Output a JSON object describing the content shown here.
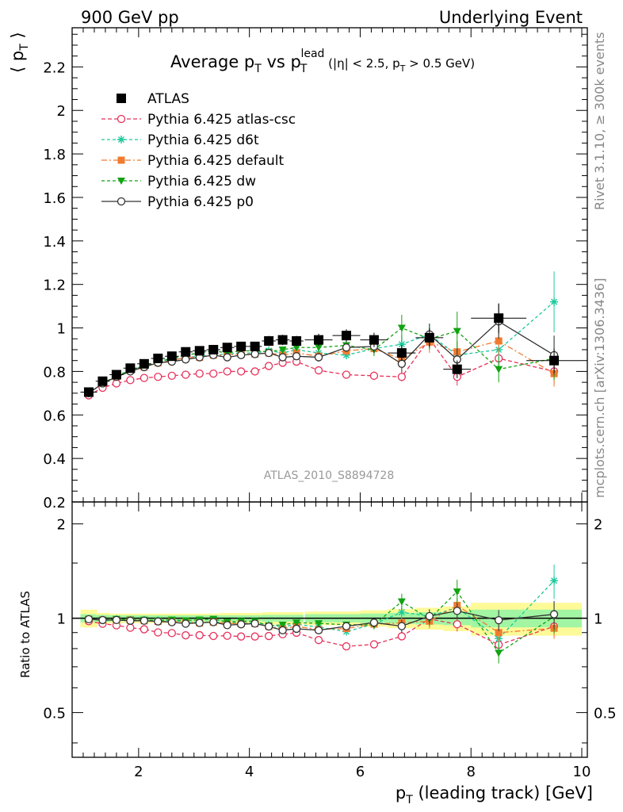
{
  "header": {
    "left": "900 GeV pp",
    "right": "Underlying Event"
  },
  "side": {
    "top": "Rivet 3.1.10, ≥ 300k events",
    "bottom": "mcplots.cern.ch [arXiv:1306.3436]"
  },
  "title": {
    "main": "Average p",
    "main_sub": "T",
    "vs": " vs p",
    "vs_sub": "T",
    "vs_sup": "lead",
    "cuts_1": " (|η| < 2.5, p",
    "cuts_sub": "T",
    "cuts_2": " > 0.5 GeV)"
  },
  "ylabel_main": {
    "left": "⟨ p",
    "sub": "T",
    "right": " ⟩"
  },
  "ylabel_ratio": "Ratio to ATLAS",
  "xlabel": {
    "p": "p",
    "sub": "T",
    "rest": " (leading track) [GeV]"
  },
  "watermark": "ATLAS_2010_S8894728",
  "colors": {
    "atlas": "#000000",
    "atlas_csc": "#e8305a",
    "d6t": "#1ac99b",
    "default": "#f07b30",
    "dw": "#12a212",
    "p0": "#333333",
    "band_outer": "#fdfa98",
    "band_inner": "#a2f5a2"
  },
  "chart_data": {
    "type": "scatter",
    "xlim": [
      0.8,
      10.1
    ],
    "main": {
      "ylim": [
        0.2,
        2.38
      ],
      "yticks": [
        0.2,
        0.4,
        0.6,
        0.8,
        1,
        1.2,
        1.4,
        1.6,
        1.8,
        2,
        2.2
      ],
      "ytick_labels": [
        "0.2",
        "0.4",
        "0.6",
        "0.8",
        "1",
        "1.2",
        "1.4",
        "1.6",
        "1.8",
        "2",
        "2.2"
      ]
    },
    "ratio": {
      "ylim": [
        0.36,
        2.35
      ],
      "scale": "log",
      "yticks": [
        0.5,
        1,
        2
      ],
      "ytick_labels": [
        "0.5",
        "1",
        "2"
      ]
    },
    "xticks": [
      2,
      4,
      6,
      8,
      10
    ],
    "xtick_labels": [
      "2",
      "4",
      "6",
      "8",
      "10"
    ],
    "x": [
      1.1,
      1.35,
      1.6,
      1.85,
      2.1,
      2.35,
      2.6,
      2.85,
      3.1,
      3.35,
      3.6,
      3.85,
      4.1,
      4.35,
      4.6,
      4.85,
      5.25,
      5.75,
      6.25,
      6.75,
      7.25,
      7.75,
      8.5,
      9.5
    ],
    "xerr": [
      0.15,
      0.125,
      0.125,
      0.125,
      0.125,
      0.125,
      0.125,
      0.125,
      0.125,
      0.125,
      0.125,
      0.125,
      0.125,
      0.125,
      0.125,
      0.125,
      0.25,
      0.25,
      0.25,
      0.25,
      0.25,
      0.25,
      0.5,
      0.5
    ],
    "data": {
      "name": "ATLAS",
      "y": [
        0.705,
        0.755,
        0.785,
        0.815,
        0.835,
        0.86,
        0.87,
        0.89,
        0.895,
        0.9,
        0.91,
        0.915,
        0.915,
        0.94,
        0.945,
        0.94,
        0.945,
        0.965,
        0.945,
        0.885,
        0.955,
        0.81,
        1.045,
        0.85
      ],
      "rel_err_outer": [
        0.065,
        0.04,
        0.035,
        0.035,
        0.035,
        0.035,
        0.035,
        0.035,
        0.035,
        0.035,
        0.04,
        0.04,
        0.04,
        0.045,
        0.045,
        0.045,
        0.05,
        0.05,
        0.06,
        0.07,
        0.08,
        0.09,
        0.12,
        0.12
      ],
      "rel_err_inner": [
        0.03,
        0.025,
        0.022,
        0.022,
        0.022,
        0.022,
        0.022,
        0.022,
        0.022,
        0.022,
        0.022,
        0.022,
        0.022,
        0.025,
        0.025,
        0.025,
        0.03,
        0.03,
        0.035,
        0.04,
        0.045,
        0.05,
        0.065,
        0.065
      ]
    },
    "series": [
      {
        "name": "Pythia 6.425 atlas-csc",
        "key": "atlas_csc",
        "marker": "circle-open",
        "dash": "5,3",
        "y": [
          0.69,
          0.725,
          0.745,
          0.76,
          0.77,
          0.775,
          0.78,
          0.785,
          0.79,
          0.79,
          0.8,
          0.8,
          0.8,
          0.825,
          0.84,
          0.845,
          0.805,
          0.785,
          0.78,
          0.775,
          0.95,
          0.775,
          0.86,
          0.8
        ],
        "err": [
          0.01,
          0.01,
          0.01,
          0.01,
          0.01,
          0.01,
          0.01,
          0.01,
          0.01,
          0.01,
          0.01,
          0.01,
          0.01,
          0.012,
          0.012,
          0.015,
          0.015,
          0.015,
          0.02,
          0.02,
          0.04,
          0.04,
          0.05,
          0.06
        ]
      },
      {
        "name": "Pythia 6.425 d6t",
        "key": "d6t",
        "marker": "star",
        "dash": "4,3",
        "y": [
          0.7,
          0.745,
          0.78,
          0.805,
          0.825,
          0.845,
          0.855,
          0.865,
          0.87,
          0.875,
          0.88,
          0.885,
          0.885,
          0.895,
          0.885,
          0.9,
          0.885,
          0.875,
          0.905,
          0.925,
          0.97,
          0.875,
          0.9,
          1.12
        ],
        "err": [
          0.01,
          0.01,
          0.01,
          0.01,
          0.01,
          0.01,
          0.01,
          0.01,
          0.01,
          0.01,
          0.01,
          0.01,
          0.012,
          0.012,
          0.015,
          0.015,
          0.02,
          0.02,
          0.03,
          0.04,
          0.05,
          0.06,
          0.08,
          0.14
        ]
      },
      {
        "name": "Pythia 6.425 default",
        "key": "default",
        "marker": "square-filled",
        "dash": "7,3,2,3",
        "y": [
          0.7,
          0.745,
          0.775,
          0.805,
          0.82,
          0.84,
          0.85,
          0.865,
          0.865,
          0.875,
          0.875,
          0.88,
          0.88,
          0.885,
          0.875,
          0.885,
          0.87,
          0.895,
          0.905,
          0.855,
          0.935,
          0.89,
          0.94,
          0.79
        ],
        "err": [
          0.01,
          0.01,
          0.01,
          0.01,
          0.01,
          0.01,
          0.01,
          0.01,
          0.01,
          0.01,
          0.01,
          0.01,
          0.012,
          0.012,
          0.015,
          0.015,
          0.02,
          0.02,
          0.03,
          0.04,
          0.05,
          0.05,
          0.06,
          0.06
        ]
      },
      {
        "name": "Pythia 6.425 dw",
        "key": "dw",
        "marker": "triangle-down",
        "dash": "4,3",
        "y": [
          0.7,
          0.745,
          0.78,
          0.805,
          0.825,
          0.845,
          0.86,
          0.875,
          0.885,
          0.895,
          0.885,
          0.895,
          0.895,
          0.89,
          0.9,
          0.91,
          0.91,
          0.92,
          0.9,
          1.0,
          0.95,
          0.985,
          0.81,
          0.86
        ],
        "err": [
          0.01,
          0.01,
          0.01,
          0.01,
          0.01,
          0.01,
          0.01,
          0.01,
          0.01,
          0.01,
          0.01,
          0.01,
          0.012,
          0.012,
          0.015,
          0.015,
          0.02,
          0.02,
          0.03,
          0.06,
          0.05,
          0.09,
          0.06,
          0.1
        ]
      },
      {
        "name": "Pythia 6.425 p0",
        "key": "p0",
        "marker": "circle-open",
        "dash": "",
        "y": [
          0.7,
          0.745,
          0.775,
          0.8,
          0.82,
          0.84,
          0.845,
          0.855,
          0.865,
          0.875,
          0.865,
          0.875,
          0.88,
          0.885,
          0.865,
          0.87,
          0.865,
          0.91,
          0.915,
          0.835,
          0.97,
          0.855,
          1.03,
          0.875
        ],
        "err": [
          0.01,
          0.01,
          0.01,
          0.01,
          0.01,
          0.01,
          0.01,
          0.01,
          0.01,
          0.01,
          0.01,
          0.01,
          0.012,
          0.012,
          0.015,
          0.015,
          0.02,
          0.02,
          0.03,
          0.04,
          0.05,
          0.05,
          0.08,
          0.09
        ]
      }
    ]
  }
}
